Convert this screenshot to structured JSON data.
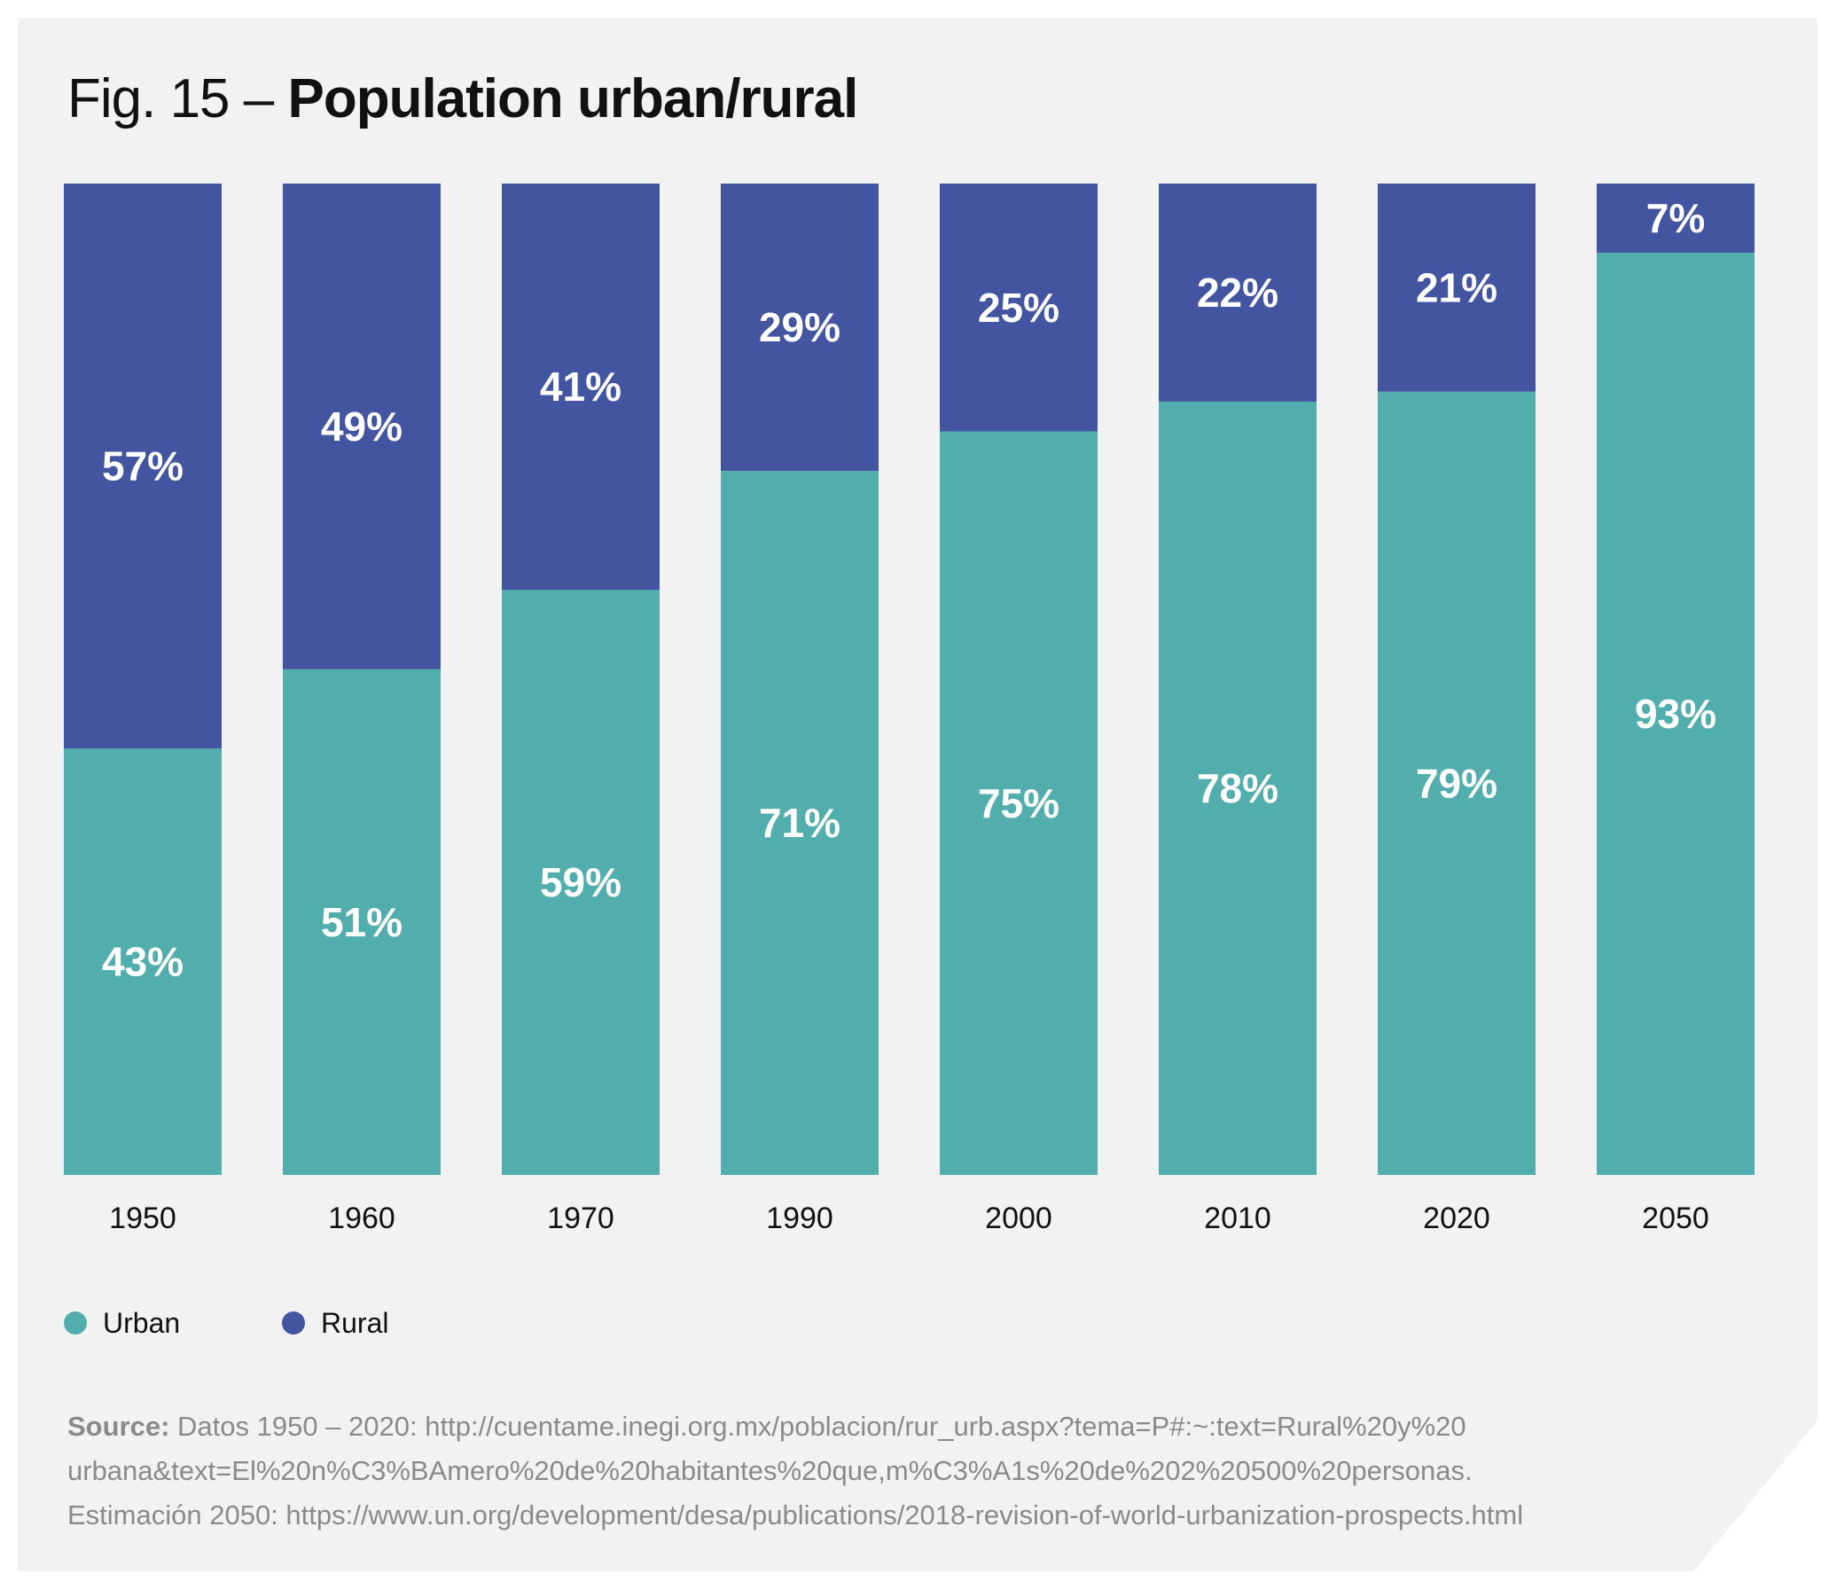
{
  "title": {
    "prefix": "Fig. 15 – ",
    "main": "Population urban/rural"
  },
  "colors": {
    "urban": "#52aeac",
    "rural": "#4354a1",
    "background": "#f2f2f2"
  },
  "chart_data": {
    "type": "bar",
    "stacked": true,
    "title": "Fig. 15 – Population urban/rural",
    "categories": [
      "1950",
      "1960",
      "1970",
      "1990",
      "2000",
      "2010",
      "2020",
      "2050"
    ],
    "series": [
      {
        "name": "Urban",
        "values": [
          43,
          51,
          59,
          71,
          75,
          78,
          79,
          93
        ],
        "labels": [
          "43%",
          "51%",
          "59%",
          "71%",
          "75%",
          "78%",
          "79%",
          "93%"
        ]
      },
      {
        "name": "Rural",
        "values": [
          57,
          49,
          41,
          29,
          25,
          22,
          21,
          7
        ],
        "labels": [
          "57%",
          "49%",
          "41%",
          "29%",
          "25%",
          "22%",
          "21%",
          "7%"
        ]
      }
    ],
    "ylim": [
      0,
      100
    ],
    "grid": false,
    "legend_position": "bottom-left"
  },
  "legend": {
    "urban": "Urban",
    "rural": "Rural"
  },
  "source": {
    "label": "Source:",
    "line1": " Datos 1950 – 2020: http://cuentame.inegi.org.mx/poblacion/rur_urb.aspx?tema=P#:~:text=Rural%20y%20",
    "line2": "urbana&text=El%20n%C3%BAmero%20de%20habitantes%20que,m%C3%A1s%20de%202%20500%20personas.",
    "line3": "Estimación 2050: https://www.un.org/development/desa/publications/2018-revision-of-world-urbanization-prospects.html"
  }
}
